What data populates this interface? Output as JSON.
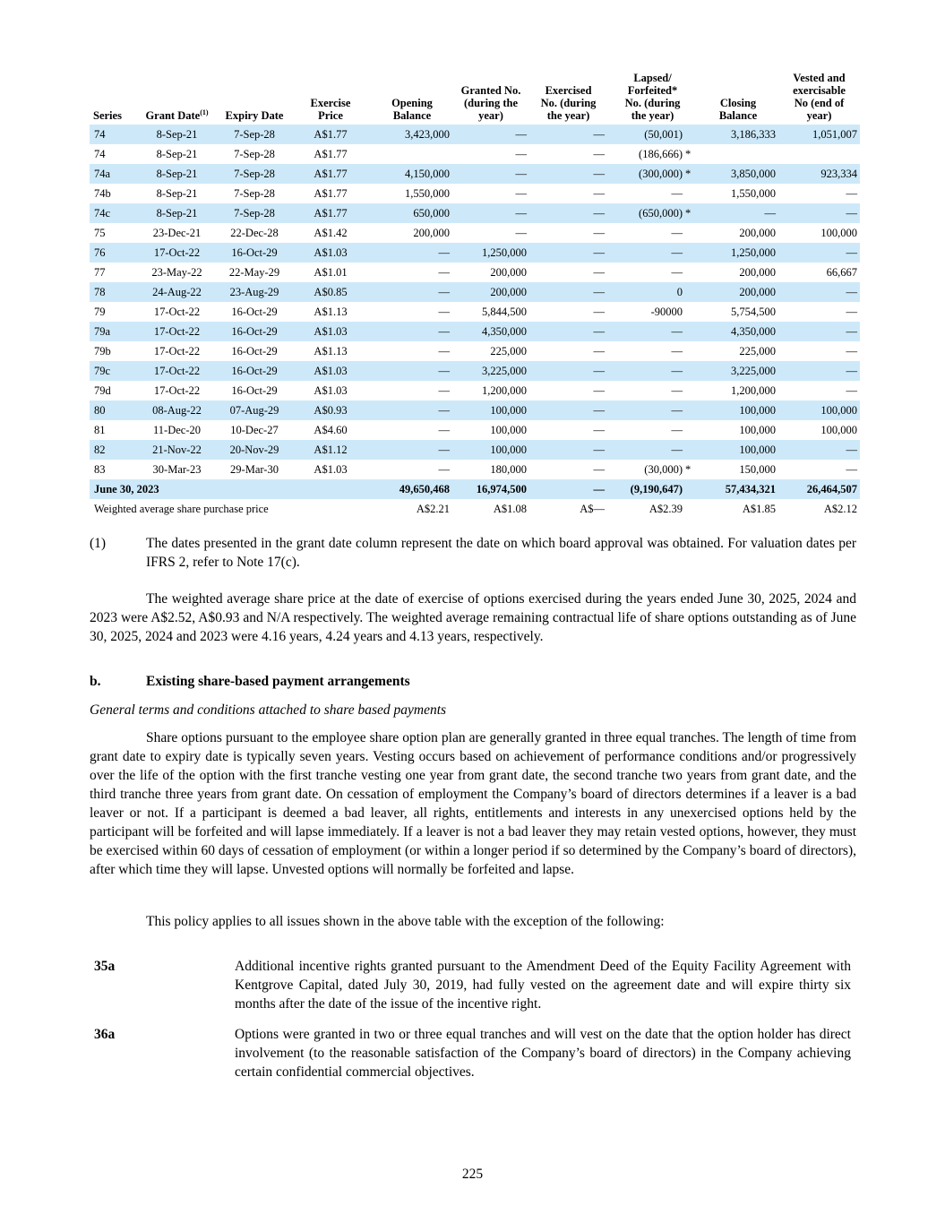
{
  "table": {
    "headers": [
      [
        "Series"
      ],
      [
        "Grant Date"
      ],
      [
        "Expiry Date"
      ],
      [
        "Exercise",
        "Price"
      ],
      [
        "Opening",
        "Balance"
      ],
      [
        "Granted No.",
        "(during the",
        "year)"
      ],
      [
        "Exercised",
        "No. (during",
        "the year)"
      ],
      [
        "Lapsed/",
        "Forfeited*",
        "No. (during",
        "the year)"
      ],
      [
        "Closing",
        "Balance"
      ],
      [
        "Vested and",
        "exercisable",
        "No (end of",
        "year)"
      ]
    ],
    "grant_date_note": "(1)",
    "rows": [
      {
        "cells": [
          "74",
          "8-Sep-21",
          "7-Sep-28",
          "A$1.77",
          "3,423,000",
          "—",
          "—",
          "(50,001)",
          "3,186,333",
          "1,051,007"
        ]
      },
      {
        "cells": [
          "74",
          "8-Sep-21",
          "7-Sep-28",
          "A$1.77",
          null,
          "—",
          "—",
          "(186,666)",
          null,
          null
        ],
        "mark": "*"
      },
      {
        "cells": [
          "74a",
          "8-Sep-21",
          "7-Sep-28",
          "A$1.77",
          "4,150,000",
          "—",
          "—",
          "(300,000)",
          "3,850,000",
          "923,334"
        ],
        "mark": "*"
      },
      {
        "cells": [
          "74b",
          "8-Sep-21",
          "7-Sep-28",
          "A$1.77",
          "1,550,000",
          "—",
          "—",
          "—",
          "1,550,000",
          "—"
        ]
      },
      {
        "cells": [
          "74c",
          "8-Sep-21",
          "7-Sep-28",
          "A$1.77",
          "650,000",
          "—",
          "—",
          "(650,000)",
          "—",
          "—"
        ],
        "mark": "*"
      },
      {
        "cells": [
          "75",
          "23-Dec-21",
          "22-Dec-28",
          "A$1.42",
          "200,000",
          "—",
          "—",
          "—",
          "200,000",
          "100,000"
        ]
      },
      {
        "cells": [
          "76",
          "17-Oct-22",
          "16-Oct-29",
          "A$1.03",
          "—",
          "1,250,000",
          "—",
          "—",
          "1,250,000",
          "—"
        ]
      },
      {
        "cells": [
          "77",
          "23-May-22",
          "22-May-29",
          "A$1.01",
          "—",
          "200,000",
          "—",
          "—",
          "200,000",
          "66,667"
        ]
      },
      {
        "cells": [
          "78",
          "24-Aug-22",
          "23-Aug-29",
          "A$0.85",
          "—",
          "200,000",
          "—",
          "0",
          "200,000",
          "—"
        ]
      },
      {
        "cells": [
          "79",
          "17-Oct-22",
          "16-Oct-29",
          "A$1.13",
          "—",
          "5,844,500",
          "—",
          "-90000",
          "5,754,500",
          "—"
        ]
      },
      {
        "cells": [
          "79a",
          "17-Oct-22",
          "16-Oct-29",
          "A$1.03",
          "—",
          "4,350,000",
          "—",
          "—",
          "4,350,000",
          "—"
        ]
      },
      {
        "cells": [
          "79b",
          "17-Oct-22",
          "16-Oct-29",
          "A$1.13",
          "—",
          "225,000",
          "—",
          "—",
          "225,000",
          "—"
        ]
      },
      {
        "cells": [
          "79c",
          "17-Oct-22",
          "16-Oct-29",
          "A$1.03",
          "—",
          "3,225,000",
          "—",
          "—",
          "3,225,000",
          "—"
        ]
      },
      {
        "cells": [
          "79d",
          "17-Oct-22",
          "16-Oct-29",
          "A$1.03",
          "—",
          "1,200,000",
          "—",
          "—",
          "1,200,000",
          "—"
        ]
      },
      {
        "cells": [
          "80",
          "08-Aug-22",
          "07-Aug-29",
          "A$0.93",
          "—",
          "100,000",
          "—",
          "—",
          "100,000",
          "100,000"
        ]
      },
      {
        "cells": [
          "81",
          "11-Dec-20",
          "10-Dec-27",
          "A$4.60",
          "—",
          "100,000",
          "—",
          "—",
          "100,000",
          "100,000"
        ]
      },
      {
        "cells": [
          "82",
          "21-Nov-22",
          "20-Nov-29",
          "A$1.12",
          "—",
          "100,000",
          "—",
          "—",
          "100,000",
          "—"
        ]
      },
      {
        "cells": [
          "83",
          "30-Mar-23",
          "29-Mar-30",
          "A$1.03",
          "—",
          "180,000",
          "—",
          "(30,000)",
          "150,000",
          "—"
        ],
        "mark": "*"
      }
    ],
    "total": {
      "label": "June 30, 2023",
      "values": [
        "49,650,468",
        "16,974,500",
        "—",
        "(9,190,647)",
        "57,434,321",
        "26,464,507"
      ]
    },
    "weighted": {
      "label": "Weighted average share purchase price",
      "values": [
        "A$2.21",
        "A$1.08",
        "A$—",
        "A$2.39",
        "A$1.85",
        "A$2.12"
      ]
    }
  },
  "footnote": {
    "marker": "(1)",
    "text": "The dates presented in the grant date column represent the date on which board approval was obtained. For valuation dates per IFRS 2, refer to Note 17(c)."
  },
  "paragraphs": [
    "The weighted average share price at the date of exercise of options exercised during the years ended June 30, 2025, 2024 and 2023 were A$2.52, A$0.93 and N/A respectively. The weighted average remaining contractual life of share options outstanding as of June 30, 2025, 2024 and 2023 were 4.16 years, 4.24 years and 4.13 years, respectively."
  ],
  "section": {
    "number": "b.",
    "title": "Existing share-based payment arrangements",
    "subtitle": "General terms and conditions attached to share based payments",
    "paragraphs": [
      "Share options pursuant to the employee share option plan are generally granted in three equal tranches. The length of time from grant date to expiry date is typically seven years. Vesting occurs based on achievement of performance conditions and/or progressively over the life of the option with the first tranche vesting one year from grant date, the second tranche two years from grant date, and the third tranche three years from grant date. On cessation of employment the Company’s board of directors determines if a leaver is a bad leaver or not. If a participant is deemed a bad leaver, all rights, entitlements and interests in any unexercised options held by the participant will be forfeited and will lapse immediately. If a leaver is not a bad leaver they may retain vested options, however, they must be exercised within 60 days of cessation of employment (or within a longer period if so determined by the Company’s board of directors), after which time they will lapse. Unvested options will normally be forfeited and lapse.",
      "This policy applies to all issues shown in the above table with the exception of the following:"
    ],
    "exceptions": [
      {
        "code": "35a",
        "text": "Additional incentive rights granted pursuant to the Amendment Deed of the Equity Facility Agreement with Kentgrove Capital, dated July 30, 2019, had fully vested on the agreement date and will expire thirty six months after the date of the issue of the incentive right."
      },
      {
        "code": "36a",
        "text": "Options were granted in two or three equal tranches and will vest on the date that the option holder has direct involvement (to the reasonable satisfaction of the Company’s board of directors) in the Company achieving certain confidential commercial objectives."
      }
    ]
  },
  "page_number": "225"
}
